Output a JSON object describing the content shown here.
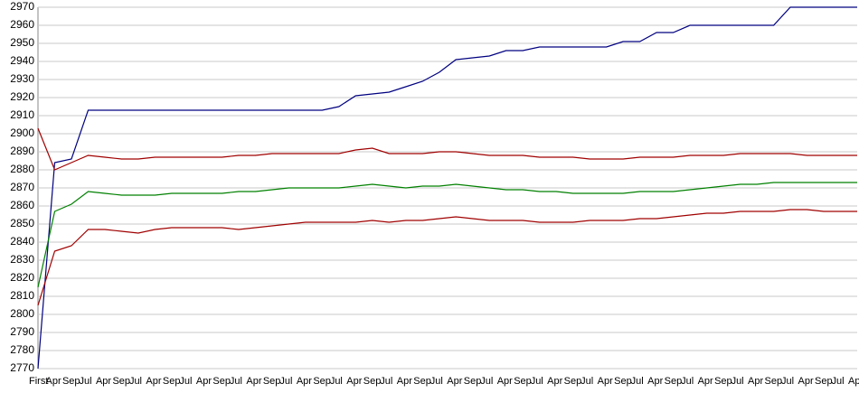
{
  "chart_data": {
    "type": "line",
    "categories": [
      "First",
      "Apr",
      "Sep",
      "Jul",
      "Apr",
      "Sep",
      "Jul",
      "Apr",
      "Sep",
      "Jul",
      "Apr",
      "Sep",
      "Jul",
      "Apr",
      "Sep",
      "Jul",
      "Apr",
      "Sep",
      "Jul",
      "Apr",
      "Sep",
      "Jul",
      "Apr",
      "Sep",
      "Jul",
      "Apr",
      "Sep",
      "Jul",
      "Apr",
      "Sep",
      "Jul",
      "Apr",
      "Sep",
      "Jul",
      "Apr",
      "Sep",
      "Jul",
      "Apr",
      "Sep",
      "Jul",
      "Apr",
      "Sep",
      "Jul",
      "Apr",
      "Sep",
      "Jul",
      "Apr",
      "Sep",
      "Jul",
      "Apr"
    ],
    "series": [
      {
        "color": "#000080",
        "values": [
          2770,
          2884,
          2886,
          2913,
          2913,
          2913,
          2913,
          2913,
          2913,
          2913,
          2913,
          2913,
          2913,
          2913,
          2913,
          2913,
          2913,
          2913,
          2915,
          2921,
          2922,
          2923,
          2926,
          2929,
          2934,
          2941,
          2942,
          2943,
          2946,
          2946,
          2948,
          2948,
          2948,
          2948,
          2948,
          2951,
          2951,
          2956,
          2956,
          2960,
          2960,
          2960,
          2960,
          2960,
          2960,
          2970,
          2970,
          2970,
          2970,
          2970
        ]
      },
      {
        "color": "#a00000",
        "values": [
          2903,
          2880,
          2884,
          2888,
          2887,
          2886,
          2886,
          2887,
          2887,
          2887,
          2887,
          2887,
          2888,
          2888,
          2889,
          2889,
          2889,
          2889,
          2889,
          2891,
          2892,
          2889,
          2889,
          2889,
          2890,
          2890,
          2889,
          2888,
          2888,
          2888,
          2887,
          2887,
          2887,
          2886,
          2886,
          2886,
          2887,
          2887,
          2887,
          2888,
          2888,
          2888,
          2889,
          2889,
          2889,
          2889,
          2888,
          2888,
          2888,
          2888
        ]
      },
      {
        "color": "#008000",
        "values": [
          2815,
          2857,
          2861,
          2868,
          2867,
          2866,
          2866,
          2866,
          2867,
          2867,
          2867,
          2867,
          2868,
          2868,
          2869,
          2870,
          2870,
          2870,
          2870,
          2871,
          2872,
          2871,
          2870,
          2871,
          2871,
          2872,
          2871,
          2870,
          2869,
          2869,
          2868,
          2868,
          2867,
          2867,
          2867,
          2867,
          2868,
          2868,
          2868,
          2869,
          2870,
          2871,
          2872,
          2872,
          2873,
          2873,
          2873,
          2873,
          2873,
          2873
        ]
      },
      {
        "color": "#a00000",
        "values": [
          2805,
          2835,
          2838,
          2847,
          2847,
          2846,
          2845,
          2847,
          2848,
          2848,
          2848,
          2848,
          2847,
          2848,
          2849,
          2850,
          2851,
          2851,
          2851,
          2851,
          2852,
          2851,
          2852,
          2852,
          2853,
          2854,
          2853,
          2852,
          2852,
          2852,
          2851,
          2851,
          2851,
          2852,
          2852,
          2852,
          2853,
          2853,
          2854,
          2855,
          2856,
          2856,
          2857,
          2857,
          2857,
          2858,
          2858,
          2857,
          2857,
          2857
        ]
      }
    ],
    "ylim": [
      2770,
      2970
    ],
    "yticks": [
      2770,
      2780,
      2790,
      2800,
      2810,
      2820,
      2830,
      2840,
      2850,
      2860,
      2870,
      2880,
      2890,
      2900,
      2910,
      2920,
      2930,
      2940,
      2950,
      2960,
      2970
    ],
    "grid": true
  }
}
